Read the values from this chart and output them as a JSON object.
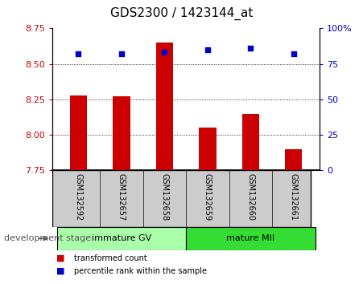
{
  "title": "GDS2300 / 1423144_at",
  "samples": [
    "GSM132592",
    "GSM132657",
    "GSM132658",
    "GSM132659",
    "GSM132660",
    "GSM132661"
  ],
  "bar_values": [
    8.28,
    8.27,
    8.65,
    8.05,
    8.15,
    7.9
  ],
  "bar_bottom": 7.75,
  "percentile_values": [
    82,
    82,
    83,
    85,
    86,
    82
  ],
  "bar_color": "#cc0000",
  "percentile_color": "#0000cc",
  "ylim_left": [
    7.75,
    8.75
  ],
  "ylim_right": [
    0,
    100
  ],
  "yticks_left": [
    7.75,
    8.0,
    8.25,
    8.5,
    8.75
  ],
  "yticks_right": [
    0,
    25,
    50,
    75,
    100
  ],
  "grid_values": [
    8.0,
    8.25,
    8.5
  ],
  "groups": [
    {
      "label": "immature GV",
      "indices": [
        0,
        1,
        2
      ],
      "color": "#aaffaa"
    },
    {
      "label": "mature MII",
      "indices": [
        3,
        4,
        5
      ],
      "color": "#33dd33"
    }
  ],
  "group_label": "development stage",
  "legend_bar_label": "transformed count",
  "legend_point_label": "percentile rank within the sample",
  "plot_bg_color": "#ffffff",
  "tick_area_color": "#cccccc",
  "left_tick_color": "#cc0000",
  "right_tick_color": "#0000cc",
  "title_fontsize": 11,
  "tick_fontsize": 8,
  "label_fontsize": 8,
  "group_fontsize": 8,
  "bar_width": 0.4
}
